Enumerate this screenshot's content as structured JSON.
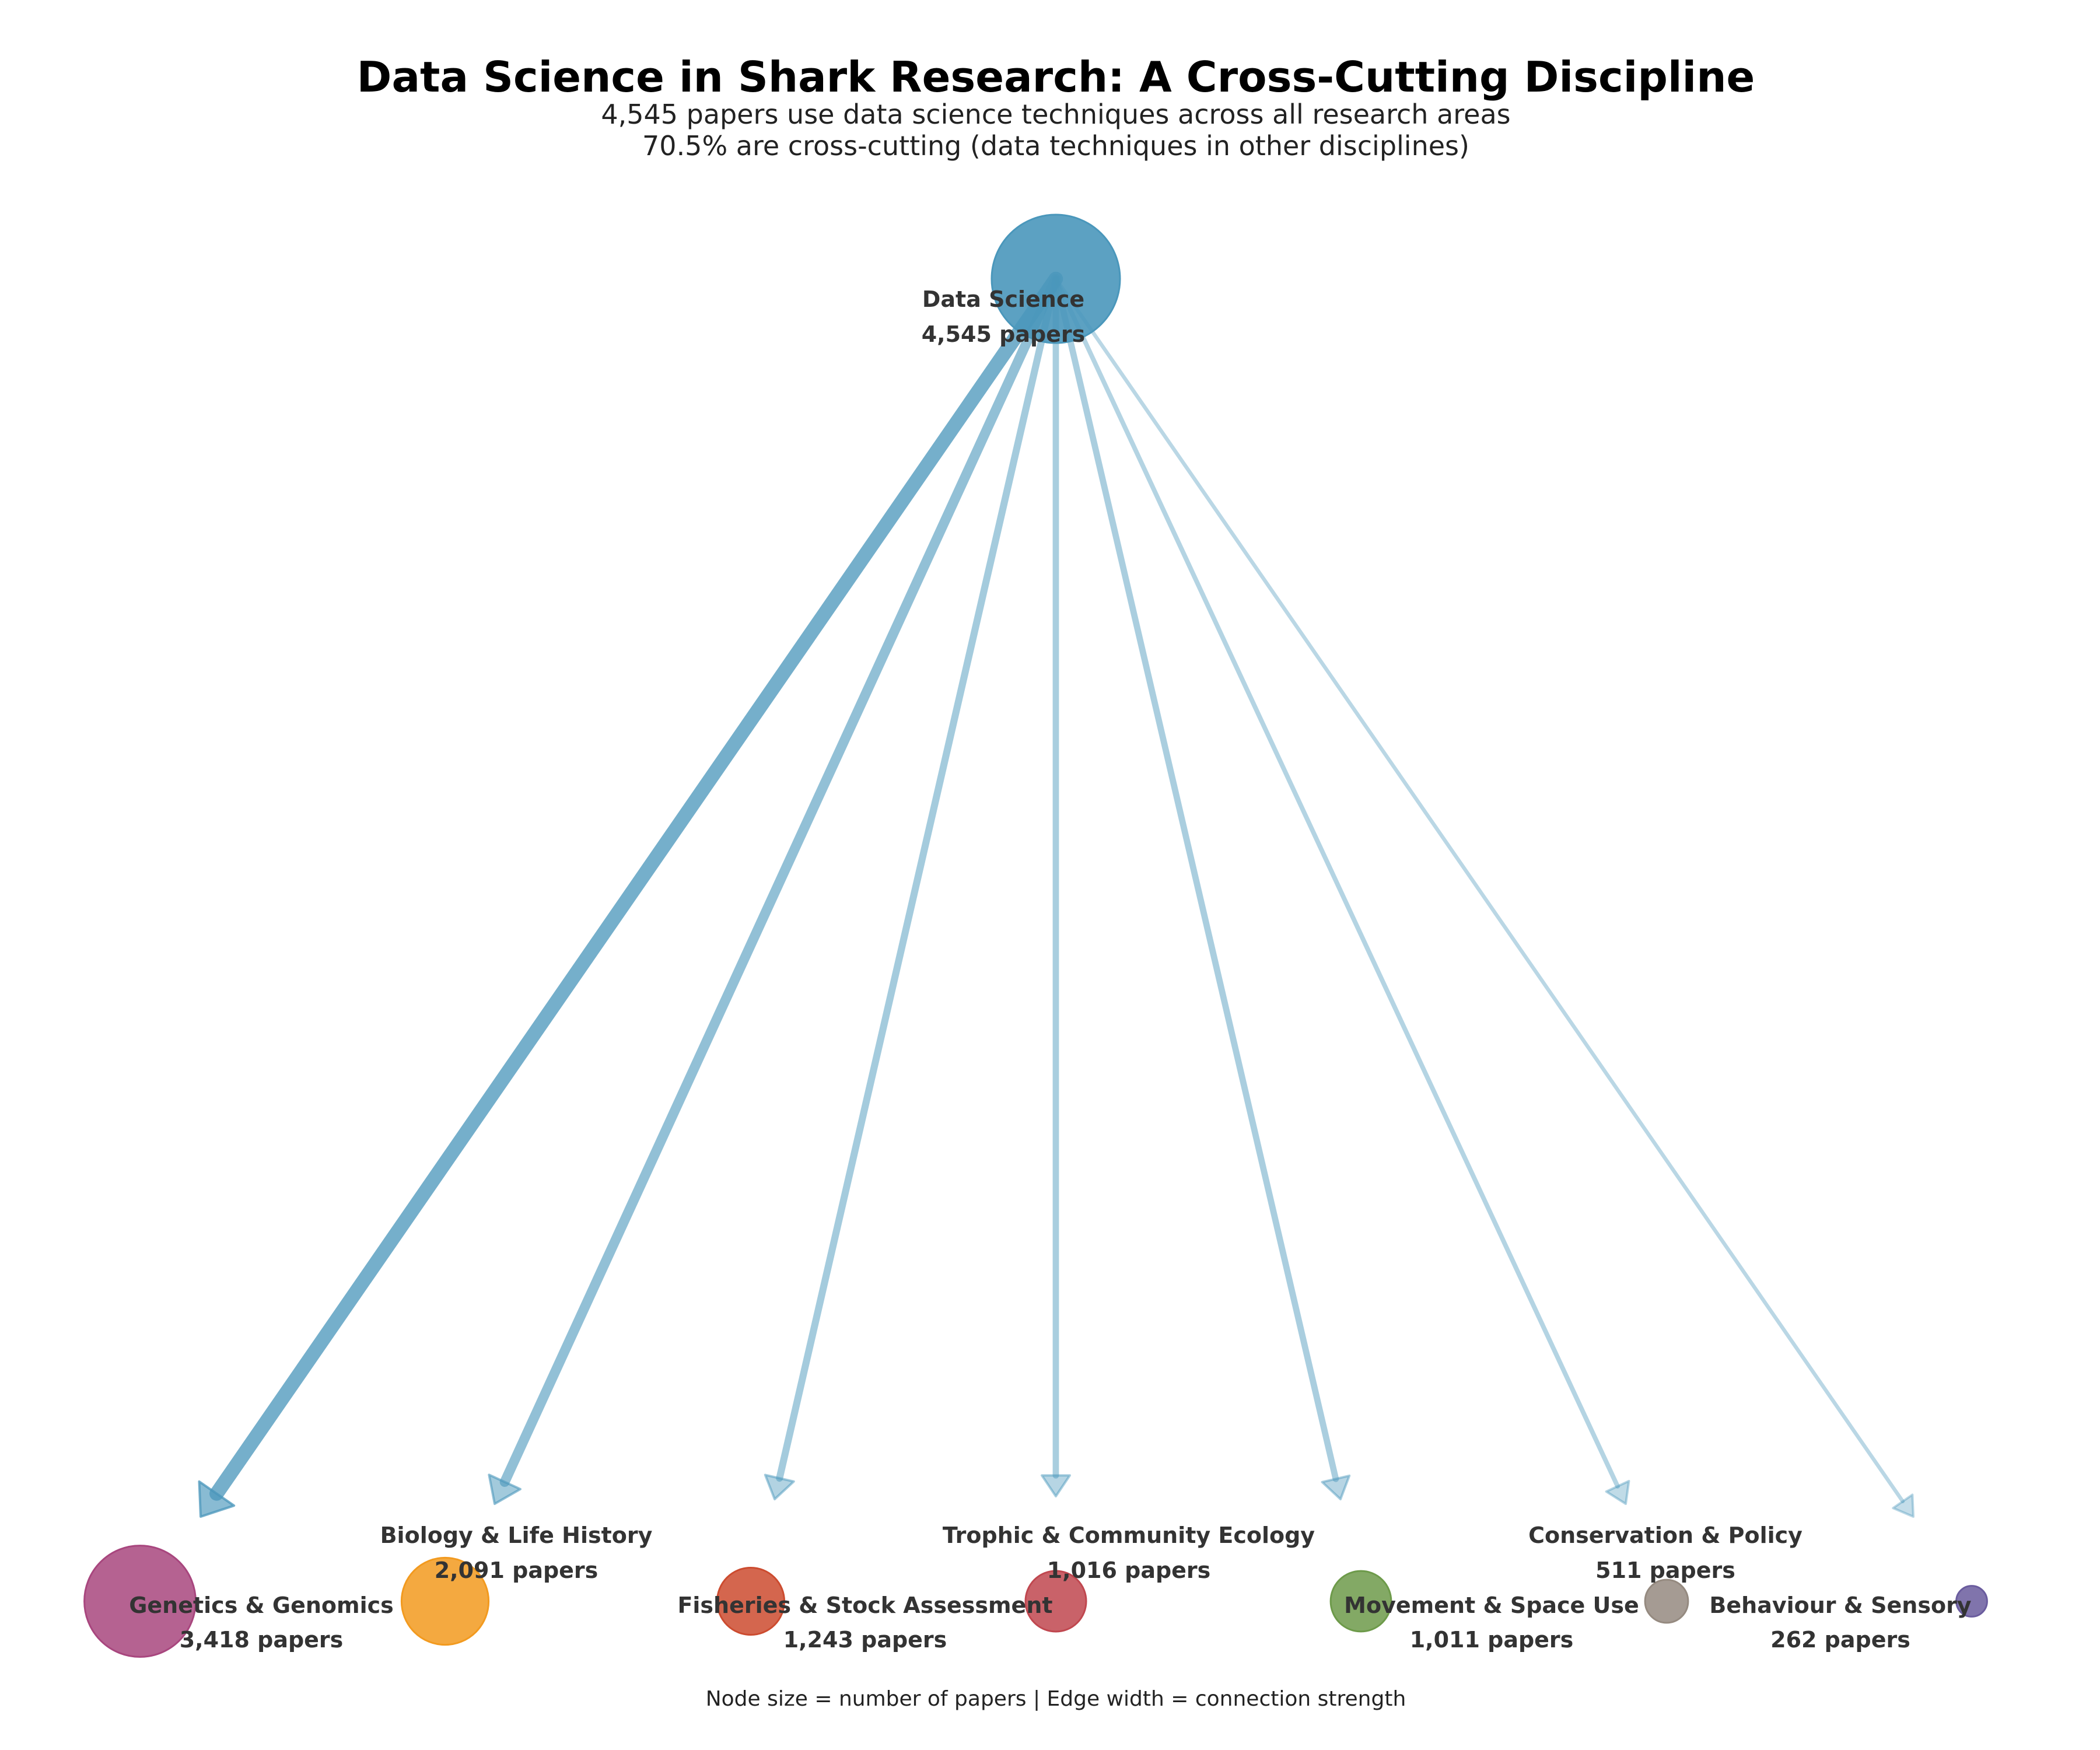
{
  "header": {
    "title": "Data Science in Shark Research: A Cross-Cutting Discipline",
    "subtitle_1": "4,545 papers use data science techniques across all research areas",
    "subtitle_2": "70.5% are cross-cutting (data techniques in other disciplines)"
  },
  "source_node": {
    "name": "Data Science",
    "count_label": "4,545 papers",
    "papers": 4545,
    "color": "#4a97bb"
  },
  "target_nodes": [
    {
      "name": "Genetics & Genomics",
      "count_label": "3,418 papers",
      "papers": 3418,
      "color": "#a8467e"
    },
    {
      "name": "Biology & Life History",
      "count_label": "2,091 papers",
      "papers": 2091,
      "color": "#f29a1f"
    },
    {
      "name": "Fisheries & Stock Assessment",
      "count_label": "1,243 papers",
      "papers": 1243,
      "color": "#cc4b2f"
    },
    {
      "name": "Trophic & Community Ecology",
      "count_label": "1,016 papers",
      "papers": 1016,
      "color": "#c0474f"
    },
    {
      "name": "Movement & Space Use",
      "count_label": "1,011 papers",
      "papers": 1011,
      "color": "#6d9a4a"
    },
    {
      "name": "Conservation & Policy",
      "count_label": "511 papers",
      "papers": 511,
      "color": "#958a80"
    },
    {
      "name": "Behaviour & Sensory",
      "count_label": "262 papers",
      "papers": 262,
      "color": "#6a5c9e"
    }
  ],
  "edge_color": "#4a97bb",
  "footer": {
    "note": "Node size = number of papers | Edge width = connection strength"
  }
}
